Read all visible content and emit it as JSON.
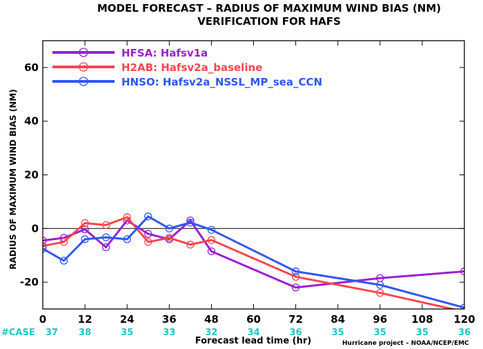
{
  "chart_data": {
    "type": "line",
    "title": "MODEL FORECAST – RADIUS OF MAXIMUM WIND BIAS (NM)",
    "subtitle": "VERIFICATION FOR HAFS",
    "ylabel": "RADIUS OF MAXIMUM WIND BIAS (NM)",
    "xlabel": "Forecast lead time (hr)",
    "xlim": [
      0,
      120
    ],
    "ylim": [
      -30,
      70
    ],
    "xticks": [
      0,
      12,
      24,
      36,
      48,
      60,
      72,
      84,
      96,
      108,
      120
    ],
    "yticks": [
      -20,
      0,
      20,
      40,
      60
    ],
    "zero_line": true,
    "legend_position": "top-left",
    "case_label": "#CASE",
    "case_color": "#18c8c8",
    "cases": [
      37,
      38,
      35,
      33,
      32,
      34,
      36,
      35,
      35,
      35,
      36
    ],
    "series": [
      {
        "name": "HFSA:  Hafsv1a",
        "color": "#9b1fd0",
        "x": [
          0,
          6,
          12,
          18,
          24,
          30,
          36,
          42,
          48,
          72,
          96,
          120
        ],
        "y": [
          -4.5,
          -3.5,
          -0.3,
          -7,
          3,
          -2,
          -4,
          3,
          -8.5,
          -22,
          -18.5,
          -16
        ]
      },
      {
        "name": "H2AB:  Hafsv2a_baseline",
        "color": "#f5474d",
        "x": [
          0,
          6,
          12,
          18,
          24,
          30,
          36,
          42,
          48,
          72,
          96,
          120
        ],
        "y": [
          -6.5,
          -5,
          2,
          1.3,
          4.2,
          -5,
          -3.5,
          -6,
          -4.3,
          -18,
          -24,
          -31
        ]
      },
      {
        "name": "HNSO:  Hafsv2a_NSSL_MP_sea_CCN",
        "color": "#2f57f2",
        "x": [
          0,
          6,
          12,
          18,
          24,
          30,
          36,
          42,
          48,
          72,
          96,
          120
        ],
        "y": [
          -7.5,
          -12,
          -4,
          -3.3,
          -4,
          4.5,
          0,
          2.2,
          -0.5,
          -16,
          -21,
          -29.5
        ]
      }
    ]
  },
  "credit": "Hurricane project – NOAA/NCEP/EMC"
}
